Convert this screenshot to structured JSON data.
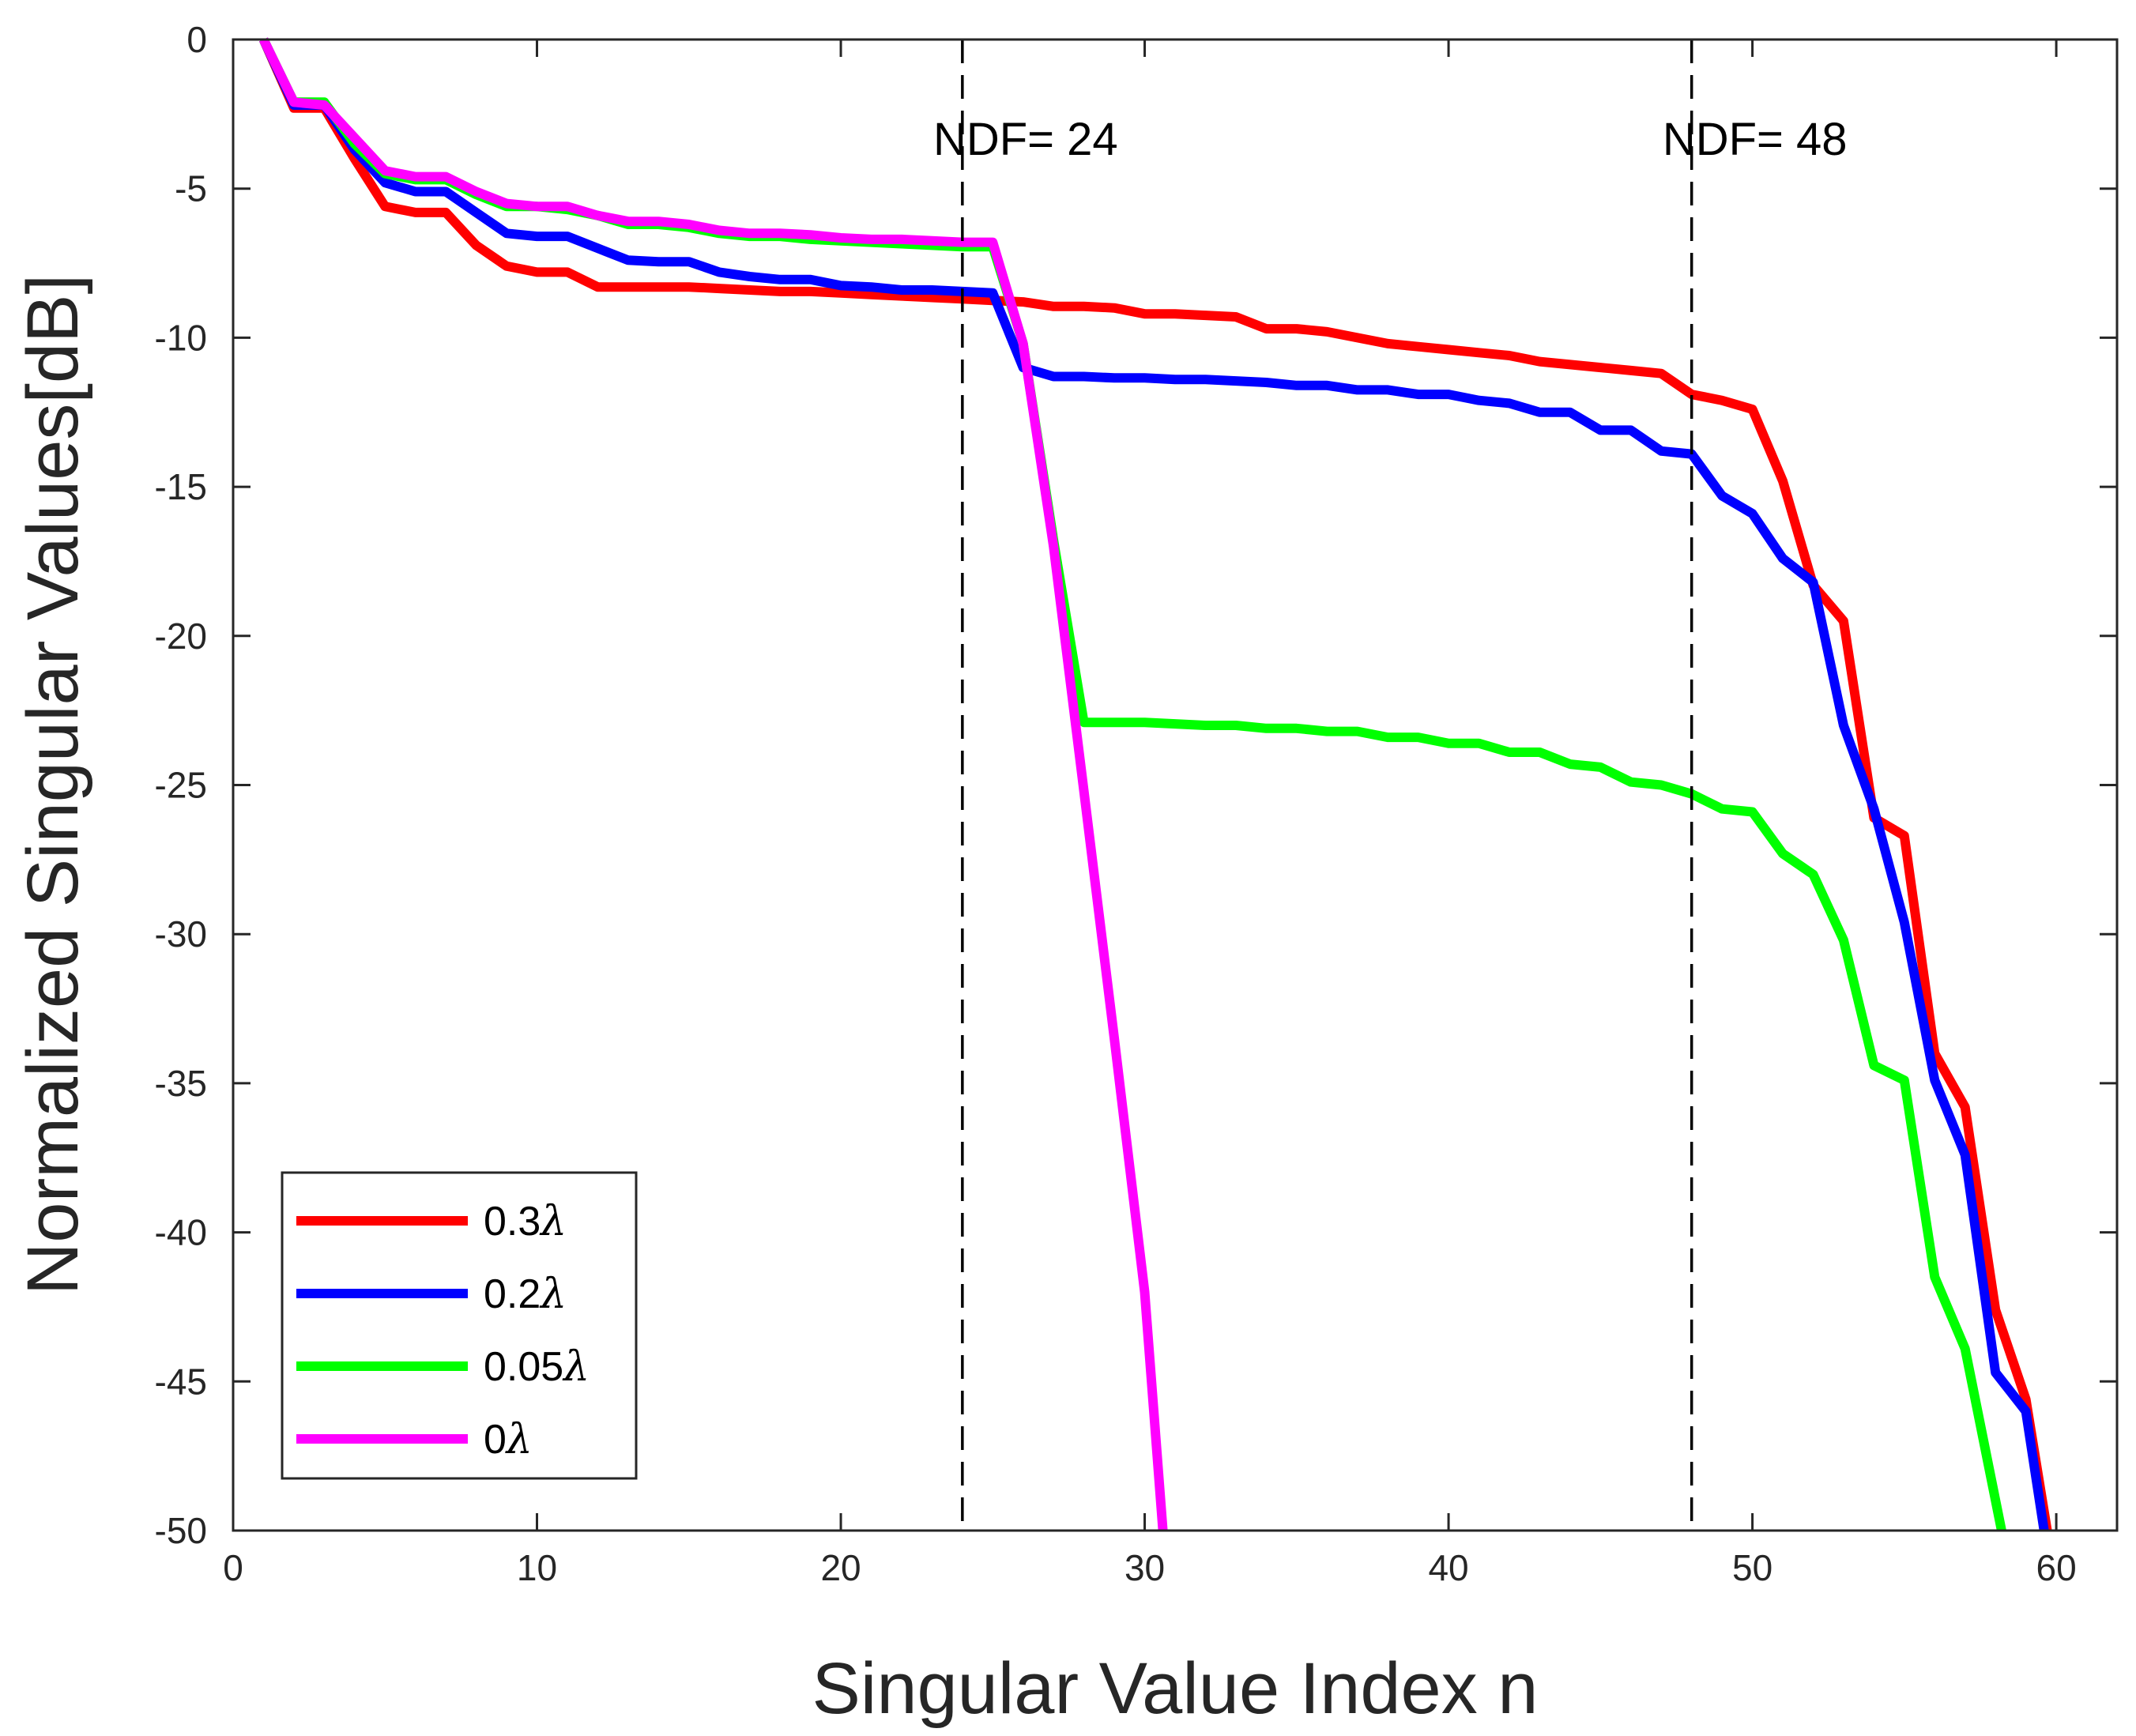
{
  "chart_data": {
    "type": "line",
    "title": "",
    "xlabel": "Singular Value Index n",
    "ylabel": "Normalized Singular Values[dB]",
    "xlim": [
      0,
      62
    ],
    "ylim": [
      -50,
      0
    ],
    "xticks": [
      0,
      10,
      20,
      30,
      40,
      50,
      60
    ],
    "yticks": [
      0,
      -5,
      -10,
      -15,
      -20,
      -25,
      -30,
      -35,
      -40,
      -45,
      -50
    ],
    "grid": false,
    "legend_position": "bottom-left",
    "vlines": [
      {
        "x": 24,
        "label": "NDF= 24"
      },
      {
        "x": 48,
        "label": "NDF= 48"
      }
    ],
    "series": [
      {
        "name": "0.3λ",
        "legend_prefix": "0.3",
        "color": "#ff0000",
        "x": [
          1,
          2,
          3,
          4,
          5,
          6,
          7,
          8,
          9,
          10,
          11,
          12,
          13,
          14,
          15,
          16,
          17,
          18,
          19,
          20,
          21,
          22,
          23,
          24,
          25,
          26,
          27,
          28,
          29,
          30,
          31,
          32,
          33,
          34,
          35,
          36,
          37,
          38,
          39,
          40,
          41,
          42,
          43,
          44,
          45,
          46,
          47,
          48,
          49,
          50,
          51,
          52,
          53,
          54,
          55,
          56,
          57,
          58,
          59,
          59.7
        ],
        "values": [
          0,
          -2.3,
          -2.3,
          -4,
          -5.6,
          -5.8,
          -5.8,
          -6.9,
          -7.6,
          -7.8,
          -7.8,
          -8.3,
          -8.3,
          -8.3,
          -8.3,
          -8.35,
          -8.4,
          -8.45,
          -8.45,
          -8.5,
          -8.55,
          -8.6,
          -8.65,
          -8.7,
          -8.75,
          -8.8,
          -8.95,
          -8.95,
          -9.0,
          -9.2,
          -9.2,
          -9.25,
          -9.3,
          -9.7,
          -9.7,
          -9.8,
          -10.0,
          -10.2,
          -10.3,
          -10.4,
          -10.5,
          -10.6,
          -10.8,
          -10.9,
          -11.0,
          -11.1,
          -11.2,
          -11.9,
          -12.1,
          -12.4,
          -14.8,
          -18.3,
          -19.5,
          -26.1,
          -26.7,
          -34.0,
          -35.8,
          -42.6,
          -45.6,
          -50
        ]
      },
      {
        "name": "0.2λ",
        "legend_prefix": "0.2",
        "color": "#0000ff",
        "x": [
          1,
          2,
          3,
          4,
          5,
          6,
          7,
          8,
          9,
          10,
          11,
          12,
          13,
          14,
          15,
          16,
          17,
          18,
          19,
          20,
          21,
          22,
          23,
          24,
          25,
          26,
          27,
          28,
          29,
          30,
          31,
          32,
          33,
          34,
          35,
          36,
          37,
          38,
          39,
          40,
          41,
          42,
          43,
          44,
          45,
          46,
          47,
          48,
          49,
          50,
          51,
          52,
          53,
          54,
          55,
          56,
          57,
          58,
          59,
          59.6
        ],
        "values": [
          0,
          -2.2,
          -2.2,
          -3.7,
          -4.8,
          -5.1,
          -5.1,
          -5.8,
          -6.5,
          -6.6,
          -6.6,
          -7.0,
          -7.4,
          -7.45,
          -7.45,
          -7.8,
          -7.95,
          -8.05,
          -8.05,
          -8.25,
          -8.3,
          -8.4,
          -8.4,
          -8.45,
          -8.5,
          -11.0,
          -11.3,
          -11.3,
          -11.35,
          -11.35,
          -11.4,
          -11.4,
          -11.45,
          -11.5,
          -11.6,
          -11.6,
          -11.75,
          -11.75,
          -11.9,
          -11.9,
          -12.1,
          -12.2,
          -12.5,
          -12.5,
          -13.1,
          -13.1,
          -13.8,
          -13.9,
          -15.3,
          -15.9,
          -17.4,
          -18.2,
          -23.0,
          -25.8,
          -29.6,
          -34.9,
          -37.4,
          -44.7,
          -46.0,
          -50
        ]
      },
      {
        "name": "0.05λ",
        "legend_prefix": "0.05",
        "color": "#00ff00",
        "x": [
          1,
          2,
          3,
          4,
          5,
          6,
          7,
          8,
          9,
          10,
          11,
          12,
          13,
          14,
          15,
          16,
          17,
          18,
          19,
          20,
          21,
          22,
          23,
          24,
          25,
          26,
          27,
          28,
          29,
          30,
          31,
          32,
          33,
          34,
          35,
          36,
          37,
          38,
          39,
          40,
          41,
          42,
          43,
          44,
          45,
          46,
          47,
          48,
          49,
          50,
          51,
          52,
          53,
          54,
          55,
          56,
          57,
          58.2
        ],
        "values": [
          0,
          -2.1,
          -2.1,
          -3.5,
          -4.5,
          -4.7,
          -4.7,
          -5.2,
          -5.6,
          -5.6,
          -5.7,
          -5.9,
          -6.2,
          -6.2,
          -6.3,
          -6.5,
          -6.6,
          -6.6,
          -6.7,
          -6.75,
          -6.8,
          -6.85,
          -6.9,
          -6.95,
          -6.95,
          -10.2,
          -16.8,
          -22.9,
          -22.9,
          -22.9,
          -22.95,
          -23.0,
          -23.0,
          -23.1,
          -23.1,
          -23.2,
          -23.2,
          -23.4,
          -23.4,
          -23.6,
          -23.6,
          -23.9,
          -23.9,
          -24.3,
          -24.4,
          -24.9,
          -25.0,
          -25.3,
          -25.8,
          -25.9,
          -27.3,
          -28.0,
          -30.2,
          -34.4,
          -34.9,
          -41.5,
          -43.9,
          -50
        ]
      },
      {
        "name": "0λ",
        "legend_prefix": "0",
        "color": "#ff00ff",
        "x": [
          1,
          2,
          3,
          4,
          5,
          6,
          7,
          8,
          9,
          10,
          11,
          12,
          13,
          14,
          15,
          16,
          17,
          18,
          19,
          20,
          21,
          22,
          23,
          24,
          25,
          26,
          27,
          28,
          29,
          30,
          30.6
        ],
        "values": [
          0,
          -2.1,
          -2.2,
          -3.3,
          -4.4,
          -4.6,
          -4.6,
          -5.1,
          -5.5,
          -5.6,
          -5.6,
          -5.9,
          -6.1,
          -6.1,
          -6.2,
          -6.4,
          -6.5,
          -6.5,
          -6.55,
          -6.65,
          -6.7,
          -6.7,
          -6.75,
          -6.8,
          -6.8,
          -10.2,
          -17.0,
          -25.2,
          -33.5,
          -42.0,
          -50
        ]
      }
    ]
  }
}
